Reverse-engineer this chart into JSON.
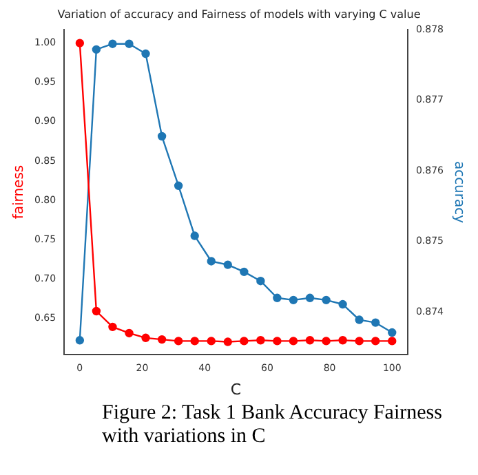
{
  "chart_data": {
    "type": "line",
    "title": "Variation of accuracy and Fairness of models with varying C value",
    "xlabel": "C",
    "ylabel": "fairness",
    "y2label": "accuracy",
    "x": [
      0,
      5.3,
      10.5,
      15.8,
      21.1,
      26.3,
      31.6,
      36.8,
      42.1,
      47.4,
      52.6,
      57.9,
      63.2,
      68.4,
      73.7,
      78.9,
      84.2,
      89.5,
      94.7,
      100
    ],
    "series": [
      {
        "color": "#ff0000",
        "values": [
          1.0,
          0.659,
          0.639,
          0.631,
          0.625,
          0.623,
          0.621,
          0.621,
          0.621,
          0.62,
          0.621,
          0.622,
          0.621,
          0.621,
          0.622,
          0.621,
          0.622,
          0.621,
          0.621,
          0.621
        ]
      },
      {
        "color": "#1f77b4",
        "axis": "y2",
        "values": [
          0.8736,
          0.87772,
          0.8778,
          0.8778,
          0.87766,
          0.87649,
          0.87579,
          0.87508,
          0.87472,
          0.87467,
          0.87457,
          0.87444,
          0.8742,
          0.87417,
          0.8742,
          0.87417,
          0.87411,
          0.87389,
          0.87385,
          0.87371
        ]
      }
    ],
    "xlim": [
      -5,
      105
    ],
    "xticks": [
      0,
      20,
      40,
      60,
      80,
      100
    ],
    "ylim": [
      0.604,
      1.017
    ],
    "yticks": [
      {
        "value": 0.65,
        "label": "0.65"
      },
      {
        "value": 0.7,
        "label": "0.70"
      },
      {
        "value": 0.75,
        "label": "0.75"
      },
      {
        "value": 0.8,
        "label": "0.80"
      },
      {
        "value": 0.85,
        "label": "0.85"
      },
      {
        "value": 0.9,
        "label": "0.90"
      },
      {
        "value": 0.95,
        "label": "0.95"
      },
      {
        "value": 1.0,
        "label": "1.00"
      }
    ],
    "y2lim": [
      0.8734,
      0.878
    ],
    "y2ticks": [
      0.874,
      0.875,
      0.876,
      0.877,
      0.878
    ],
    "marker": "circle",
    "grid": false,
    "legend": false,
    "annotations": [
      "Figure 2: Task 1 Bank Accuracy Fairness with variations in C"
    ]
  }
}
